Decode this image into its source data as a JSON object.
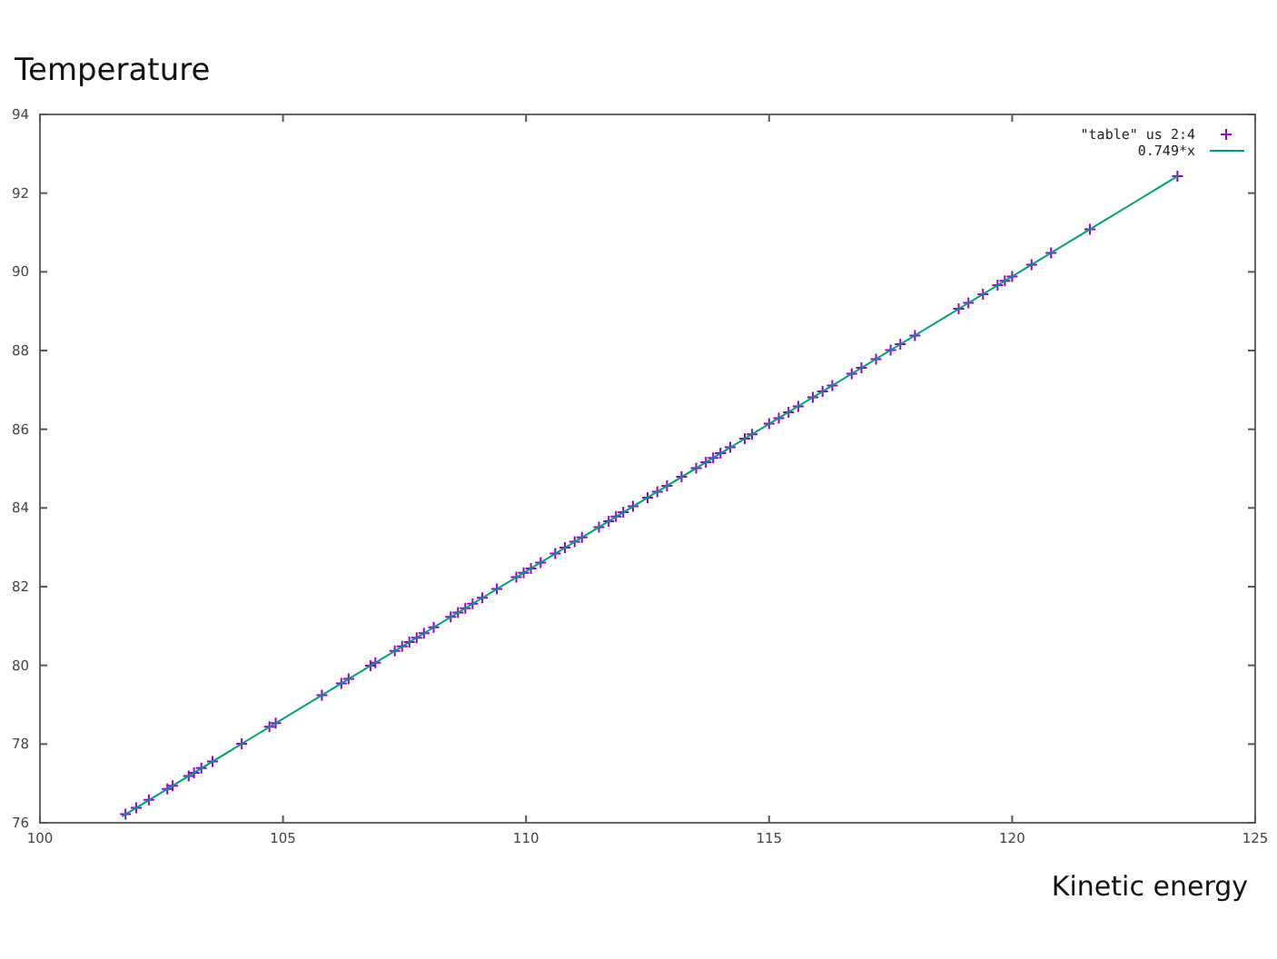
{
  "chart_data": {
    "type": "scatter",
    "xlabel": "Kinetic energy",
    "ylabel": "Temperature",
    "xlim": [
      100,
      125
    ],
    "xticks": [
      100,
      105,
      110,
      115,
      120,
      125
    ],
    "ylim": [
      76,
      94
    ],
    "yticks": [
      76,
      78,
      80,
      82,
      84,
      86,
      88,
      90,
      92,
      94
    ],
    "grid": false,
    "legend": "top right",
    "line_style": "solid",
    "series": [
      {
        "name": "\"table\" us 2:4",
        "marker": "cross",
        "color": "#9400d3",
        "x": [
          101.76,
          101.98,
          102.24,
          102.62,
          102.73,
          103.06,
          103.17,
          103.32,
          103.55,
          104.15,
          104.72,
          104.85,
          105.8,
          106.2,
          106.35,
          106.8,
          106.9,
          107.3,
          107.45,
          107.6,
          107.75,
          107.9,
          108.1,
          108.45,
          108.6,
          108.75,
          108.9,
          109.1,
          109.4,
          109.8,
          109.95,
          110.1,
          110.3,
          110.6,
          110.8,
          111.0,
          111.15,
          111.5,
          111.7,
          111.85,
          112.0,
          112.2,
          112.5,
          112.7,
          112.9,
          113.2,
          113.5,
          113.7,
          113.85,
          114.0,
          114.2,
          114.5,
          114.65,
          115.0,
          115.2,
          115.4,
          115.6,
          115.9,
          116.1,
          116.3,
          116.7,
          116.9,
          117.2,
          117.5,
          117.7,
          118.0,
          118.9,
          119.1,
          119.4,
          119.7,
          119.85,
          120.0,
          120.4,
          120.8,
          121.6,
          123.4
        ],
        "values": [
          76.22,
          76.38,
          76.58,
          76.86,
          76.94,
          77.19,
          77.27,
          77.39,
          77.56,
          78.01,
          78.44,
          78.53,
          79.24,
          79.54,
          79.66,
          79.99,
          80.07,
          80.37,
          80.48,
          80.59,
          80.7,
          80.82,
          80.97,
          81.23,
          81.34,
          81.45,
          81.57,
          81.72,
          81.94,
          82.24,
          82.35,
          82.46,
          82.61,
          82.84,
          82.99,
          83.14,
          83.25,
          83.51,
          83.66,
          83.78,
          83.89,
          84.04,
          84.26,
          84.41,
          84.56,
          84.79,
          85.01,
          85.16,
          85.27,
          85.39,
          85.54,
          85.76,
          85.87,
          86.14,
          86.28,
          86.43,
          86.58,
          86.81,
          86.96,
          87.11,
          87.41,
          87.56,
          87.78,
          88.01,
          88.16,
          88.38,
          89.06,
          89.21,
          89.43,
          89.66,
          89.77,
          89.88,
          90.18,
          90.48,
          91.08,
          92.43
        ]
      },
      {
        "name": "0.749*x",
        "type": "line",
        "color": "#009e73",
        "x": [
          101.7,
          123.4
        ],
        "values": [
          76.17,
          92.43
        ]
      }
    ]
  }
}
